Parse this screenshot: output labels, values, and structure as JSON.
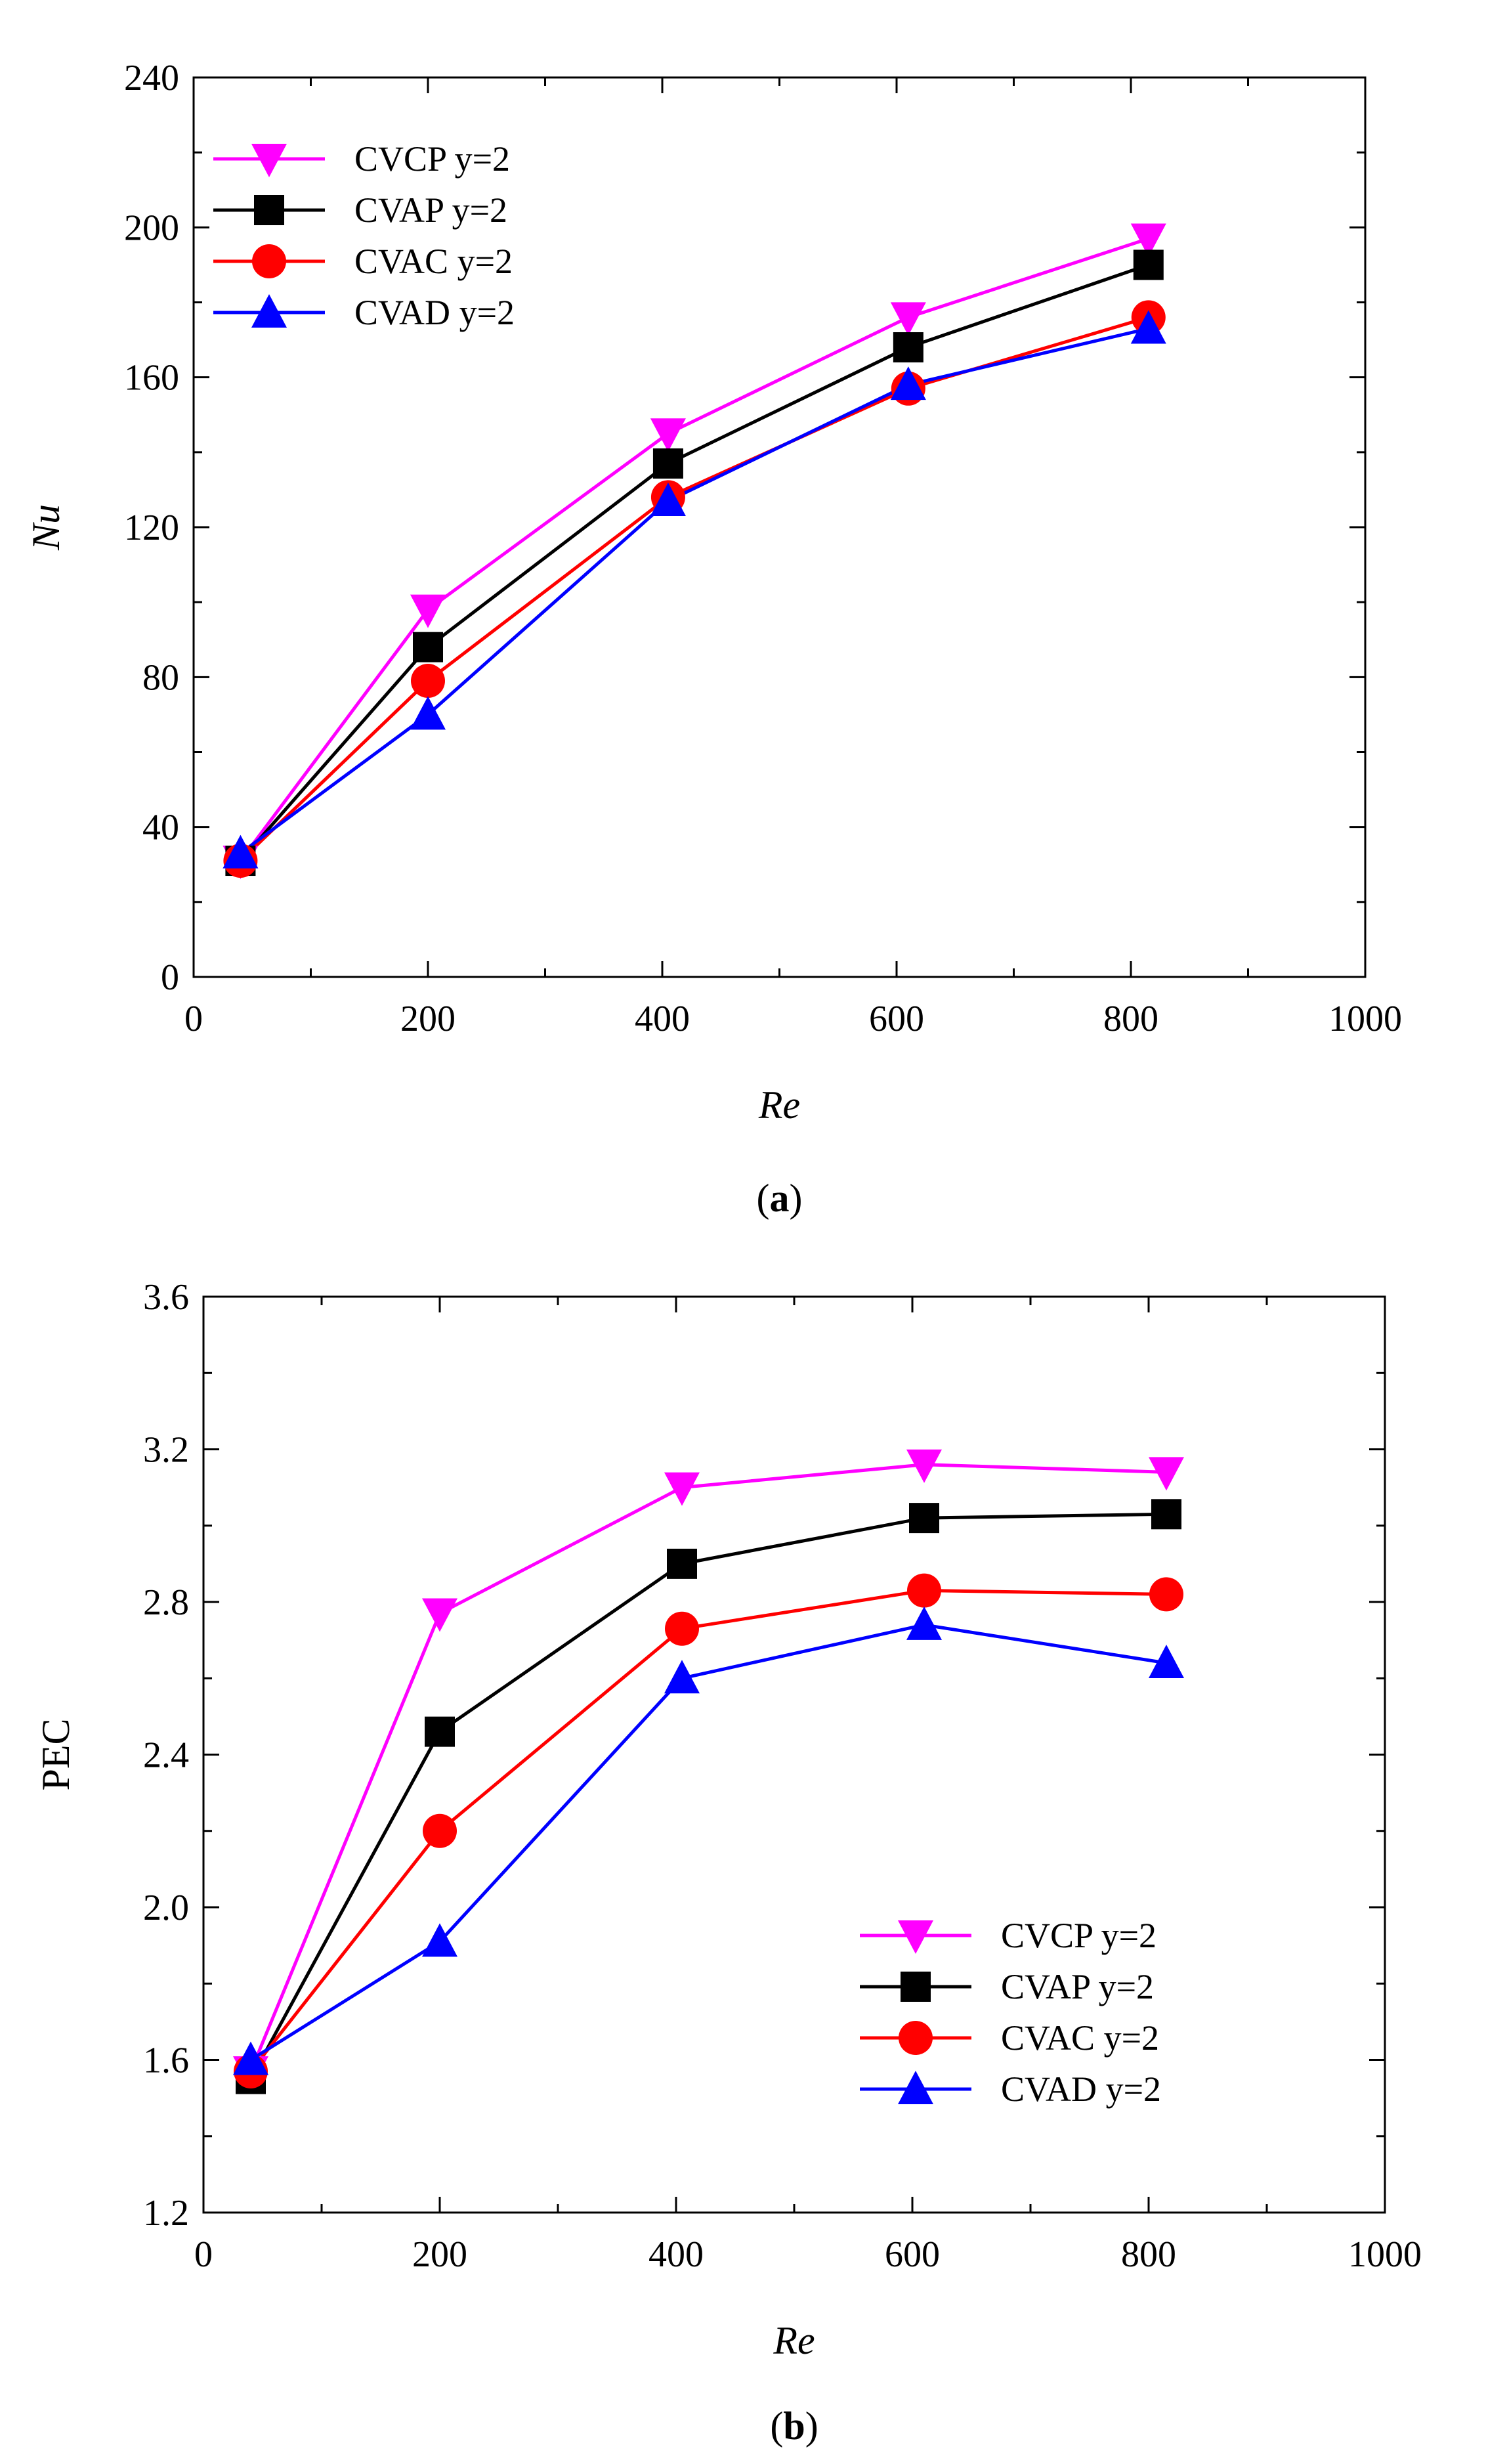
{
  "figure": {
    "panels": [
      "a",
      "b"
    ]
  },
  "chart_data": [
    {
      "type": "line",
      "panel_label": "a",
      "xlabel": "Re",
      "ylabel": "Nu",
      "xlim": [
        0,
        1000
      ],
      "ylim": [
        0,
        240
      ],
      "xticks": [
        0,
        200,
        400,
        600,
        800,
        1000
      ],
      "yticks": [
        0,
        40,
        80,
        120,
        160,
        200,
        240
      ],
      "legend_position": "top-left",
      "x": [
        40,
        200,
        405,
        610,
        815
      ],
      "series": [
        {
          "name": "CVCP",
          "suffix": "y=2",
          "color": "#ff00ff",
          "marker": "triangle-down",
          "values": [
            31,
            98,
            145,
            176,
            197
          ]
        },
        {
          "name": "CVAP",
          "suffix": "y=2",
          "color": "#000000",
          "marker": "square",
          "values": [
            31,
            88,
            137,
            168,
            190
          ]
        },
        {
          "name": "CVAC",
          "suffix": "y=2",
          "color": "#ff0000",
          "marker": "circle",
          "values": [
            31,
            79,
            128,
            157,
            176
          ]
        },
        {
          "name": "CVAD",
          "suffix": "y=2",
          "color": "#0000ff",
          "marker": "triangle-up",
          "values": [
            33,
            70,
            127,
            158,
            173
          ]
        }
      ]
    },
    {
      "type": "line",
      "panel_label": "b",
      "xlabel": "Re",
      "ylabel": "PEC",
      "xlim": [
        0,
        1000
      ],
      "ylim": [
        1.2,
        3.6
      ],
      "xticks": [
        0,
        200,
        400,
        600,
        800,
        1000
      ],
      "yticks": [
        "1.2",
        "1.6",
        "2.0",
        "2.4",
        "2.8",
        "3.2",
        "3.6"
      ],
      "legend_position": "bottom-right",
      "x": [
        40,
        200,
        405,
        610,
        815
      ],
      "series": [
        {
          "name": "CVCP",
          "suffix": "y=2",
          "color": "#ff00ff",
          "marker": "triangle-down",
          "values": [
            1.57,
            2.77,
            3.1,
            3.16,
            3.14
          ]
        },
        {
          "name": "CVAP",
          "suffix": "y=2",
          "color": "#000000",
          "marker": "square",
          "values": [
            1.55,
            2.46,
            2.9,
            3.02,
            3.03
          ]
        },
        {
          "name": "CVAC",
          "suffix": "y=2",
          "color": "#ff0000",
          "marker": "circle",
          "values": [
            1.57,
            2.2,
            2.73,
            2.83,
            2.82
          ]
        },
        {
          "name": "CVAD",
          "suffix": "y=2",
          "color": "#0000ff",
          "marker": "triangle-up",
          "values": [
            1.6,
            1.91,
            2.6,
            2.74,
            2.64
          ]
        }
      ]
    }
  ]
}
